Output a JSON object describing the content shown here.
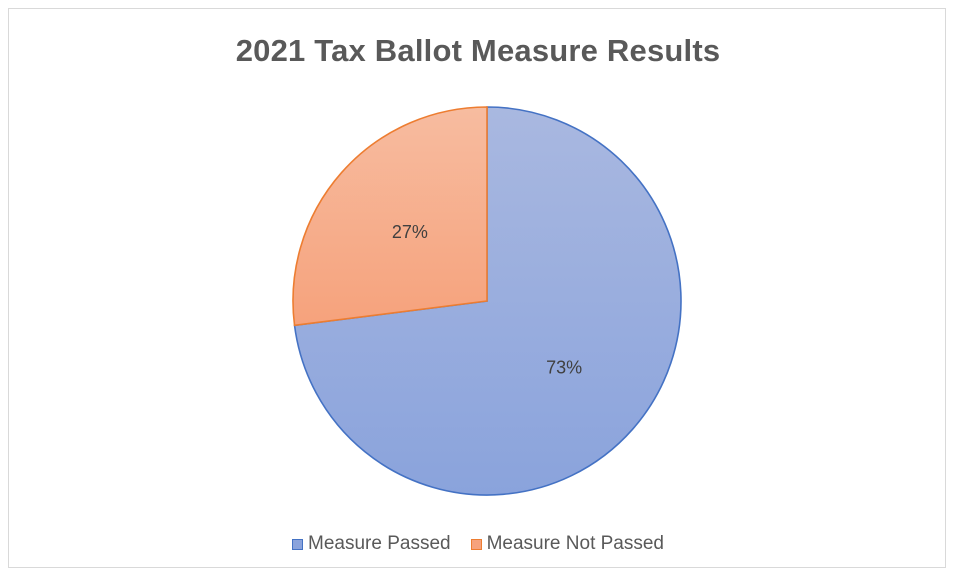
{
  "chart_data": {
    "type": "pie",
    "title": "2021 Tax Ballot Measure Results",
    "slices": [
      {
        "label": "Measure Passed",
        "value": 73,
        "display": "73%",
        "color_top": "#a9b8e0",
        "color_bottom": "#8aa3dc",
        "stroke": "#4472c4"
      },
      {
        "label": "Measure Not Passed",
        "value": 27,
        "display": "27%",
        "color_top": "#f7bca0",
        "color_bottom": "#f6a27c",
        "stroke": "#ed7d31"
      }
    ],
    "legend_position": "bottom",
    "start_angle": "12 o'clock, clockwise"
  }
}
